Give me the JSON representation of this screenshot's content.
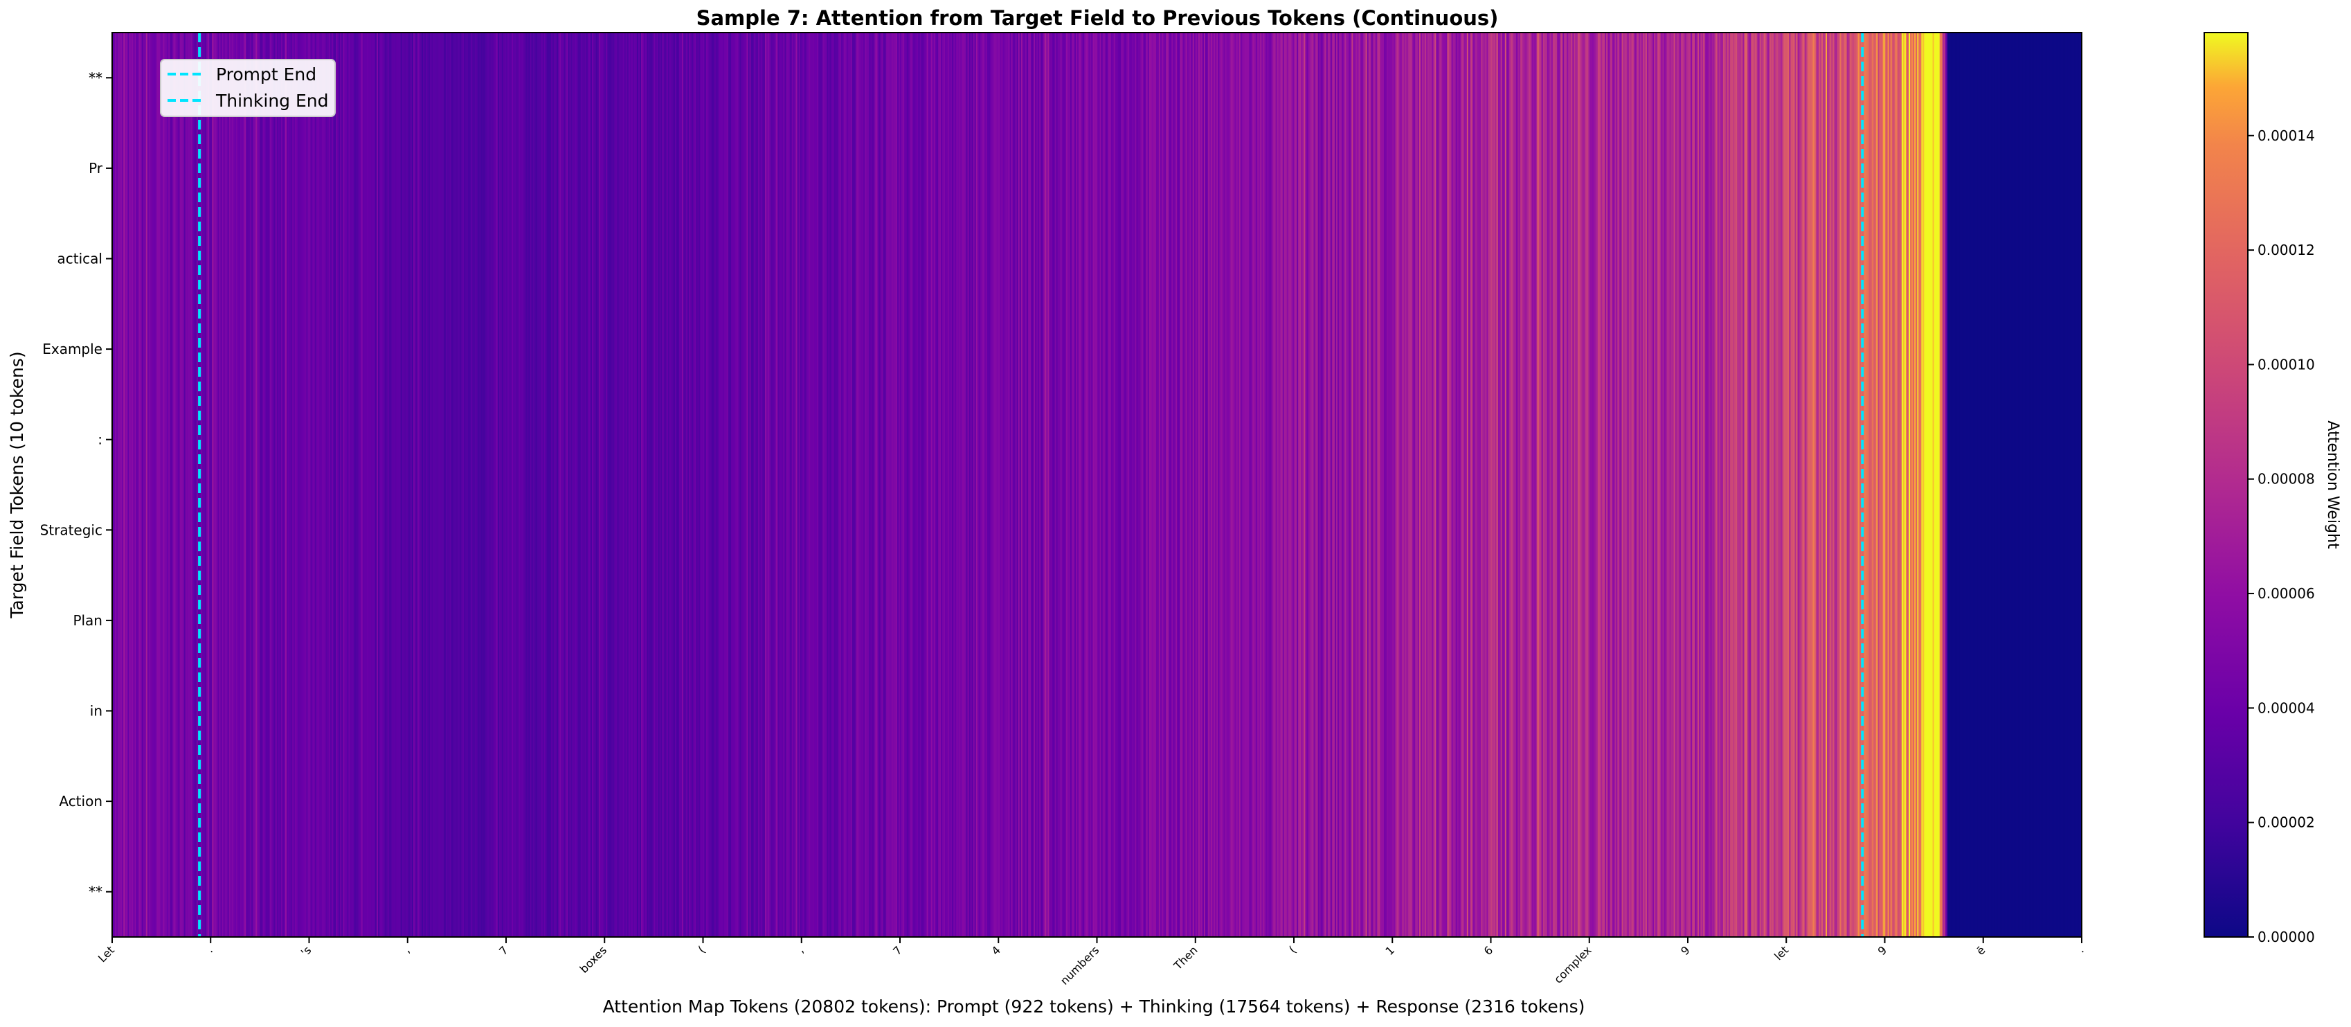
{
  "chart_data": {
    "type": "heatmap",
    "title": "Sample 7: Attention from Target Field to Previous Tokens (Continuous)",
    "xlabel": "Attention Map Tokens (20802 tokens): Prompt (922 tokens) + Thinking (17564 tokens) + Response (2316 tokens)",
    "ylabel": "Target Field Tokens (10 tokens)",
    "colorbar_label": "Attention Weight",
    "colormap": "plasma",
    "y_tick_labels": [
      "**",
      "Pr",
      "actical",
      "Example",
      ":",
      "Strategic",
      "Plan",
      "in",
      "Action",
      "**"
    ],
    "x_tick_labels": [
      "Let",
      ".",
      "'s",
      ",",
      "7",
      "boxes",
      "(",
      ",",
      "7",
      "4",
      "numbers",
      "Then",
      "(",
      "1",
      "6",
      "complex",
      "9",
      "let",
      "9",
      "ē",
      "."
    ],
    "colorbar_ticks": [
      "0.00000",
      "0.00002",
      "0.00004",
      "0.00006",
      "0.00008",
      "0.00010",
      "0.00012",
      "0.00014"
    ],
    "colorbar_range": [
      0,
      0.000158
    ],
    "total_tokens": 20802,
    "prompt_tokens": 922,
    "thinking_tokens": 17564,
    "response_tokens": 2316,
    "markers": [
      {
        "name": "Prompt End",
        "token": 922,
        "color": "#00e5ff"
      },
      {
        "name": "Thinking End",
        "token": 18486,
        "color": "#00e5ff"
      }
    ],
    "column_profile": [
      {
        "token": 0,
        "weight": 4.2e-05
      },
      {
        "token": 1200,
        "weight": 3.7e-05
      },
      {
        "token": 3500,
        "weight": 2.4e-05
      },
      {
        "token": 5500,
        "weight": 2.8e-05
      },
      {
        "token": 8000,
        "weight": 3.6e-05
      },
      {
        "token": 10500,
        "weight": 4.3e-05
      },
      {
        "token": 13500,
        "weight": 5.6e-05
      },
      {
        "token": 15000,
        "weight": 6.5e-05
      },
      {
        "token": 16800,
        "weight": 7e-05
      },
      {
        "token": 18300,
        "weight": 9e-05
      },
      {
        "token": 18900,
        "weight": 0.000125
      },
      {
        "token": 19300,
        "weight": 0.000158
      },
      {
        "token": 19390,
        "weight": 0.0
      },
      {
        "token": 20802,
        "weight": 0.0
      }
    ],
    "legend_position": "upper-left",
    "grid": false
  }
}
